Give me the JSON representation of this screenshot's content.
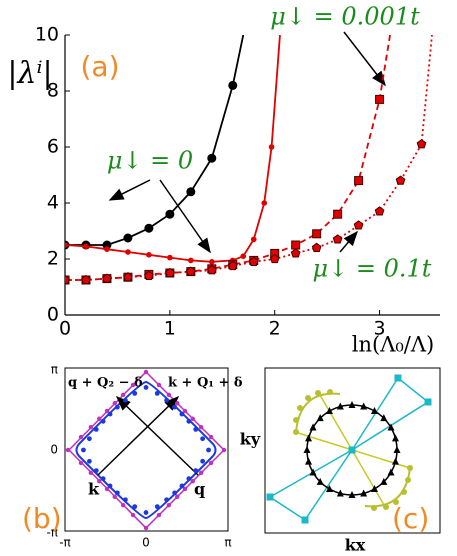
{
  "chart_data": {
    "type": "line",
    "ylabel": "|λⁱ|",
    "xlabel": "ln(Λ₀/Λ)",
    "panel_label": "(a)",
    "xlim": [
      0,
      3.5
    ],
    "ylim": [
      0,
      10
    ],
    "xticks": [
      0,
      1,
      2,
      3
    ],
    "yticks": [
      0,
      2,
      4,
      6,
      8,
      10
    ],
    "series": [
      {
        "color": "#000000",
        "marker": "circle",
        "dash": "solid",
        "x": [
          0,
          0.2,
          0.4,
          0.6,
          0.8,
          1.0,
          1.2,
          1.4,
          1.6,
          1.7
        ],
        "values": [
          2.5,
          2.5,
          2.5,
          2.75,
          3.1,
          3.6,
          4.4,
          5.6,
          8.2,
          10
        ]
      },
      {
        "color": "#e00000",
        "marker": "dot",
        "dash": "solid",
        "x": [
          0,
          0.2,
          0.4,
          0.6,
          0.8,
          1.0,
          1.2,
          1.4,
          1.6,
          1.7,
          1.8,
          1.9,
          1.97,
          2.05
        ],
        "values": [
          2.5,
          2.45,
          2.35,
          2.25,
          2.15,
          2.05,
          1.95,
          1.9,
          1.95,
          2.1,
          2.7,
          4.0,
          6.0,
          10
        ]
      },
      {
        "color": "#e00000",
        "marker": "square",
        "dash": "dashed",
        "x": [
          0,
          0.2,
          0.4,
          0.6,
          0.8,
          1.0,
          1.2,
          1.4,
          1.6,
          1.8,
          2.0,
          2.2,
          2.4,
          2.6,
          2.8,
          3.0,
          3.1
        ],
        "values": [
          1.25,
          1.25,
          1.3,
          1.35,
          1.45,
          1.5,
          1.55,
          1.65,
          1.8,
          1.95,
          2.2,
          2.5,
          2.9,
          3.6,
          4.8,
          7.7,
          10
        ]
      },
      {
        "color": "#e00000",
        "marker": "pentagon",
        "dash": "dotted",
        "x": [
          0,
          0.2,
          0.4,
          0.6,
          0.8,
          1.0,
          1.2,
          1.4,
          1.6,
          1.8,
          2.0,
          2.2,
          2.4,
          2.6,
          2.8,
          3.0,
          3.2,
          3.4,
          3.5
        ],
        "values": [
          1.25,
          1.25,
          1.3,
          1.35,
          1.4,
          1.5,
          1.55,
          1.6,
          1.75,
          1.9,
          2.0,
          2.2,
          2.4,
          2.7,
          3.2,
          3.7,
          4.8,
          6.1,
          10
        ]
      }
    ],
    "annotations": [
      "μ↓ = 0.001t",
      "μ↓ = 0",
      "μ↓ = 0.1t"
    ]
  },
  "panels": {
    "b": {
      "label": "(b)",
      "yticks": [
        "π",
        "0",
        "-π"
      ],
      "xticks": [
        "-π",
        "0",
        "π"
      ],
      "texts": [
        "q + Q₂ − δ",
        "k + Q₁ + δ",
        "k",
        "q"
      ]
    },
    "c": {
      "label": "(c)",
      "ylabel": "ky",
      "xlabel": "kx"
    }
  }
}
